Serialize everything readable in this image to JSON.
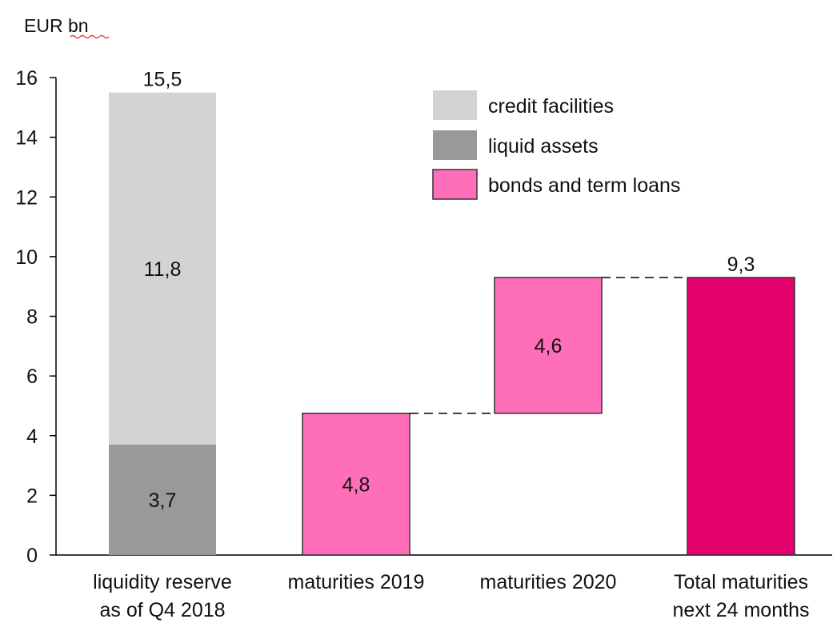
{
  "chart_data": {
    "type": "bar",
    "subtype": "waterfall",
    "unit_label": "EUR bn",
    "ylim": [
      0,
      16
    ],
    "yticks": [
      0,
      2,
      4,
      6,
      8,
      10,
      12,
      14,
      16
    ],
    "grid": false,
    "legend_position": "top-right",
    "colors": {
      "credit_facilities": "#d3d3d3",
      "liquid_assets": "#999999",
      "bonds_and_term_loans": "#ff6eb9",
      "total": "#e6006e",
      "bar_outline": "#333333"
    },
    "legend": [
      {
        "key": "credit_facilities",
        "label": "credit facilities"
      },
      {
        "key": "liquid_assets",
        "label": "liquid assets"
      },
      {
        "key": "bonds_and_term_loans",
        "label": "bonds and term loans"
      }
    ],
    "categories": [
      [
        "liquidity reserve",
        "as of Q4 2018"
      ],
      [
        "maturities 2019"
      ],
      [
        "maturities 2020"
      ],
      [
        "Total maturities",
        "next 24 months"
      ]
    ],
    "bars": [
      {
        "category_index": 0,
        "segments": [
          {
            "series": "liquid_assets",
            "base": 0,
            "value": 3.7,
            "label": "3,7"
          },
          {
            "series": "credit_facilities",
            "base": 3.7,
            "value": 11.8,
            "label": "11,8"
          }
        ],
        "total_label": "15,5"
      },
      {
        "category_index": 1,
        "segments": [
          {
            "series": "bonds_and_term_loans",
            "base": 0,
            "value": 4.75,
            "label": "4,8"
          }
        ]
      },
      {
        "category_index": 2,
        "segments": [
          {
            "series": "bonds_and_term_loans",
            "base": 4.75,
            "value": 4.55,
            "label": "4,6"
          }
        ]
      },
      {
        "category_index": 3,
        "segments": [
          {
            "series": "total",
            "base": 0,
            "value": 9.3,
            "label": ""
          }
        ],
        "total_label": "9,3"
      }
    ],
    "connectors": [
      {
        "from": 1,
        "to": 2,
        "value": 4.75
      },
      {
        "from": 2,
        "to": 3,
        "value": 9.3
      }
    ]
  }
}
